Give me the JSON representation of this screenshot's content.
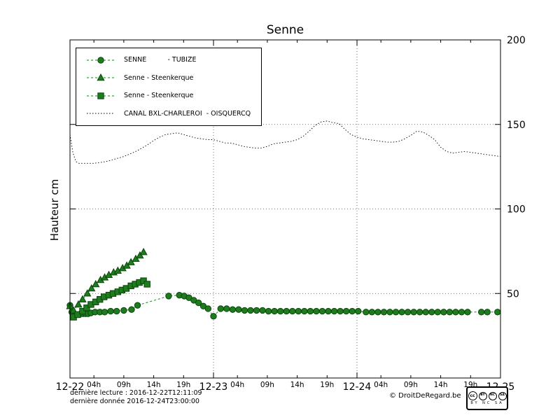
{
  "chart_data": {
    "type": "line",
    "title": "Senne",
    "ylabel": "Hauteur cm",
    "ylim": [
      0,
      200
    ],
    "xlim_hours": [
      0,
      72
    ],
    "y_ticks": [
      50,
      100,
      150,
      200
    ],
    "x_major_ticks": [
      {
        "pos": 0,
        "label": "12-22"
      },
      {
        "pos": 24,
        "label": "12-23"
      },
      {
        "pos": 48,
        "label": "12-24"
      },
      {
        "pos": 72,
        "label": "12-25"
      }
    ],
    "x_minor_ticks": [
      {
        "pos": 4,
        "label": "04h"
      },
      {
        "pos": 9,
        "label": "09h"
      },
      {
        "pos": 14,
        "label": "14h"
      },
      {
        "pos": 19,
        "label": "19h"
      },
      {
        "pos": 28,
        "label": "04h"
      },
      {
        "pos": 33,
        "label": "09h"
      },
      {
        "pos": 38,
        "label": "14h"
      },
      {
        "pos": 43,
        "label": "19h"
      },
      {
        "pos": 52,
        "label": "04h"
      },
      {
        "pos": 57,
        "label": "09h"
      },
      {
        "pos": 62,
        "label": "14h"
      },
      {
        "pos": 67,
        "label": "19h"
      }
    ],
    "grid": {
      "vertical_at_hours": [
        24,
        48
      ],
      "horizontal_at": [
        50,
        100,
        150
      ],
      "style": "dotted"
    },
    "legend_position": "top-left",
    "series": [
      {
        "name": "SENNE          - TUBIZE",
        "marker": "circle",
        "line": "dotted",
        "color": "#1e7b1e",
        "edge": "#0a470a",
        "points": [
          [
            0,
            43
          ],
          [
            0.3,
            39
          ],
          [
            0.7,
            38
          ],
          [
            1,
            37.5
          ],
          [
            1.4,
            37.5
          ],
          [
            1.8,
            38
          ],
          [
            2.2,
            38
          ],
          [
            2.6,
            38
          ],
          [
            3,
            38
          ],
          [
            3.5,
            38.5
          ],
          [
            4.2,
            39
          ],
          [
            5,
            39
          ],
          [
            5.8,
            39
          ],
          [
            6.8,
            39.5
          ],
          [
            7.8,
            39.5
          ],
          [
            9,
            40
          ],
          [
            10.3,
            40.5
          ],
          [
            11.3,
            43
          ],
          [
            16.5,
            48.5
          ],
          [
            18.3,
            49
          ],
          [
            19.1,
            48.5
          ],
          [
            19.9,
            47.5
          ],
          [
            20.7,
            46
          ],
          [
            21.5,
            44.5
          ],
          [
            22.3,
            42.5
          ],
          [
            23.1,
            41
          ],
          [
            24,
            36.5
          ],
          [
            25.2,
            41
          ],
          [
            26.2,
            41
          ],
          [
            27.2,
            40.5
          ],
          [
            28.2,
            40.5
          ],
          [
            29.2,
            40
          ],
          [
            30.2,
            40
          ],
          [
            31.2,
            40
          ],
          [
            32.2,
            40
          ],
          [
            33.2,
            39.5
          ],
          [
            34.2,
            39.5
          ],
          [
            35.2,
            39.5
          ],
          [
            36.2,
            39.5
          ],
          [
            37.2,
            39.5
          ],
          [
            38.2,
            39.5
          ],
          [
            39.2,
            39.5
          ],
          [
            40.2,
            39.5
          ],
          [
            41.2,
            39.5
          ],
          [
            42.2,
            39.5
          ],
          [
            43.2,
            39.5
          ],
          [
            44.2,
            39.5
          ],
          [
            45.2,
            39.5
          ],
          [
            46.2,
            39.5
          ],
          [
            47.2,
            39.5
          ],
          [
            48.2,
            39.5
          ],
          [
            49.5,
            39
          ],
          [
            50.5,
            39
          ],
          [
            51.5,
            39
          ],
          [
            52.5,
            39
          ],
          [
            53.5,
            39
          ],
          [
            54.5,
            39
          ],
          [
            55.5,
            39
          ],
          [
            56.5,
            39
          ],
          [
            57.5,
            39
          ],
          [
            58.5,
            39
          ],
          [
            59.5,
            39
          ],
          [
            60.5,
            39
          ],
          [
            61.5,
            39
          ],
          [
            62.5,
            39
          ],
          [
            63.5,
            39
          ],
          [
            64.5,
            39
          ],
          [
            65.5,
            39
          ],
          [
            66.5,
            39
          ],
          [
            68.8,
            39
          ],
          [
            69.8,
            39
          ],
          [
            71.5,
            39
          ]
        ]
      },
      {
        "name": "Senne - Steenkerque",
        "marker": "triangle",
        "line": "dotted",
        "color": "#1e7b1e",
        "edge": "#0a470a",
        "points": [
          [
            0,
            42.5
          ],
          [
            0.6,
            40
          ],
          [
            1.4,
            43.5
          ],
          [
            2.1,
            46.5
          ],
          [
            2.9,
            50
          ],
          [
            3.6,
            53
          ],
          [
            4.3,
            55.5
          ],
          [
            5.1,
            58
          ],
          [
            5.8,
            59.5
          ],
          [
            6.5,
            61
          ],
          [
            7.3,
            62.5
          ],
          [
            8,
            63.5
          ],
          [
            8.8,
            65
          ],
          [
            9.5,
            66.5
          ],
          [
            10.2,
            68.5
          ],
          [
            11,
            70.5
          ],
          [
            11.7,
            72.5
          ],
          [
            12.3,
            74.5
          ]
        ]
      },
      {
        "name": "Senne - Steenkerque",
        "marker": "square",
        "line": "dotted",
        "color": "#1e7b1e",
        "edge": "#0a470a",
        "points": [
          [
            0.6,
            36
          ],
          [
            1.3,
            37.5
          ],
          [
            2.1,
            39.5
          ],
          [
            2.8,
            41.5
          ],
          [
            3.5,
            43.5
          ],
          [
            4.3,
            45
          ],
          [
            5,
            46.5
          ],
          [
            5.7,
            48
          ],
          [
            6.5,
            49
          ],
          [
            7.2,
            50
          ],
          [
            8,
            51
          ],
          [
            8.7,
            52
          ],
          [
            9.4,
            53
          ],
          [
            10.2,
            54.5
          ],
          [
            10.9,
            55.5
          ],
          [
            11.6,
            56.5
          ],
          [
            12.3,
            57.5
          ],
          [
            12.9,
            55.5
          ]
        ]
      },
      {
        "name": "CANAL BXL-CHARLEROI  - OISQUERCQ",
        "marker": "none",
        "line": "dotted",
        "color": "#000000",
        "edge": "#000000",
        "points": [
          [
            0,
            144
          ],
          [
            0.5,
            133
          ],
          [
            1,
            128
          ],
          [
            1.5,
            127
          ],
          [
            2,
            127
          ],
          [
            3,
            127
          ],
          [
            4,
            127
          ],
          [
            5,
            127.5
          ],
          [
            6,
            128
          ],
          [
            7,
            129
          ],
          [
            8,
            130
          ],
          [
            9,
            131
          ],
          [
            10,
            132.5
          ],
          [
            11,
            134
          ],
          [
            12,
            136
          ],
          [
            13,
            138
          ],
          [
            14,
            140.5
          ],
          [
            15,
            142.5
          ],
          [
            16,
            144
          ],
          [
            17,
            144.5
          ],
          [
            18,
            145
          ],
          [
            19,
            144
          ],
          [
            20,
            143
          ],
          [
            21,
            142
          ],
          [
            22,
            141.5
          ],
          [
            23,
            141
          ],
          [
            24,
            141
          ],
          [
            25,
            140
          ],
          [
            26,
            139
          ],
          [
            27,
            139
          ],
          [
            28,
            138
          ],
          [
            29,
            137
          ],
          [
            30,
            136.5
          ],
          [
            31,
            136
          ],
          [
            32,
            136
          ],
          [
            33,
            137
          ],
          [
            34,
            138.5
          ],
          [
            35,
            139
          ],
          [
            36,
            139.5
          ],
          [
            37,
            140
          ],
          [
            38,
            141
          ],
          [
            39,
            143
          ],
          [
            40,
            146
          ],
          [
            41,
            149.5
          ],
          [
            42,
            151.5
          ],
          [
            43,
            152
          ],
          [
            44,
            151
          ],
          [
            45,
            150.5
          ],
          [
            46,
            147
          ],
          [
            47,
            144
          ],
          [
            48,
            142.5
          ],
          [
            49,
            141.5
          ],
          [
            50,
            141
          ],
          [
            51,
            140.5
          ],
          [
            52,
            140
          ],
          [
            53,
            139.5
          ],
          [
            54,
            139.5
          ],
          [
            55,
            140
          ],
          [
            56,
            141.5
          ],
          [
            57,
            143.5
          ],
          [
            58,
            146
          ],
          [
            59,
            145.5
          ],
          [
            60,
            143.5
          ],
          [
            61,
            141
          ],
          [
            62,
            136.5
          ],
          [
            63,
            134
          ],
          [
            64,
            133
          ],
          [
            65,
            133.5
          ],
          [
            66,
            134
          ],
          [
            67,
            133.5
          ],
          [
            68,
            133
          ],
          [
            69,
            132.5
          ],
          [
            70,
            132
          ],
          [
            71,
            131.5
          ],
          [
            72,
            131
          ]
        ]
      }
    ]
  },
  "footer": {
    "last_reading": "dernière lecture : 2016-12-22T12:11:09",
    "last_data": "dernière donnée  2016-12-24T23:00:00",
    "credit": "© DroitDeRegard.be",
    "license": {
      "logo": "cc",
      "parts": [
        "BY",
        "NC",
        "SA"
      ],
      "caption": "BY NC SA"
    }
  }
}
